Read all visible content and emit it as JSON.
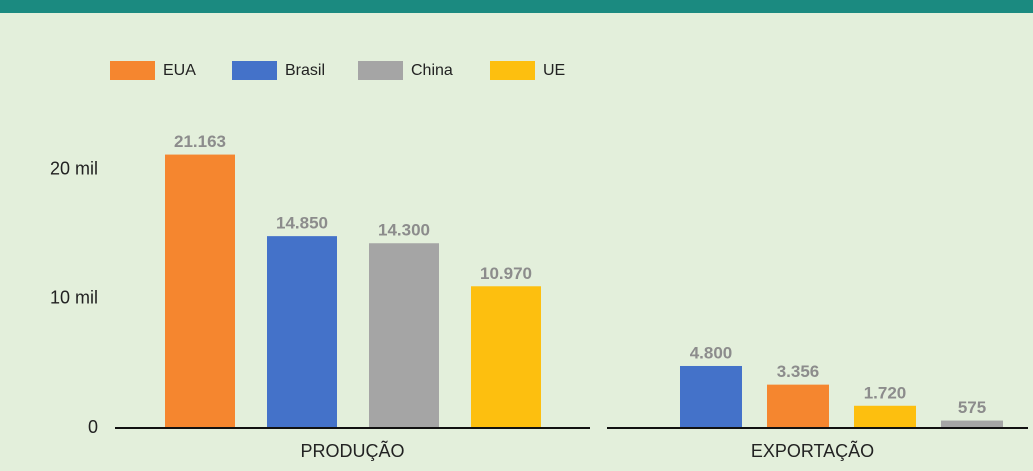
{
  "chart_data": [
    {
      "type": "bar",
      "categories": [
        "PRODUÇÃO"
      ],
      "series": [
        {
          "name": "EUA",
          "color": "#f5862f",
          "values": [
            21163
          ],
          "value_labels": [
            "21.163"
          ]
        },
        {
          "name": "Brasil",
          "color": "#4472c9",
          "values": [
            14850
          ],
          "value_labels": [
            "14.850"
          ]
        },
        {
          "name": "China",
          "color": "#a5a5a5",
          "values": [
            14300
          ],
          "value_labels": [
            "14.300"
          ]
        },
        {
          "name": "UE",
          "color": "#fdbf0f",
          "values": [
            10970
          ],
          "value_labels": [
            "10.970"
          ]
        }
      ],
      "ylim": [
        0,
        25000
      ],
      "yticks": [
        0,
        {
          "value": 10000,
          "label": "10 mil"
        },
        {
          "value": 20000,
          "label": "20 mil"
        }
      ]
    },
    {
      "type": "bar",
      "categories": [
        "EXPORTAÇÃO"
      ],
      "series": [
        {
          "color": "#4472c9",
          "values": [
            4800
          ],
          "value_labels": [
            "4.800"
          ]
        },
        {
          "color": "#f5862f",
          "values": [
            3356
          ],
          "value_labels": [
            "3.356"
          ]
        },
        {
          "color": "#fdbf0f",
          "values": [
            1720
          ],
          "value_labels": [
            "1.720"
          ]
        },
        {
          "color": "#a5a5a5",
          "values": [
            575
          ],
          "value_labels": [
            "575"
          ]
        }
      ],
      "ylim": [
        0,
        25000
      ]
    }
  ]
}
